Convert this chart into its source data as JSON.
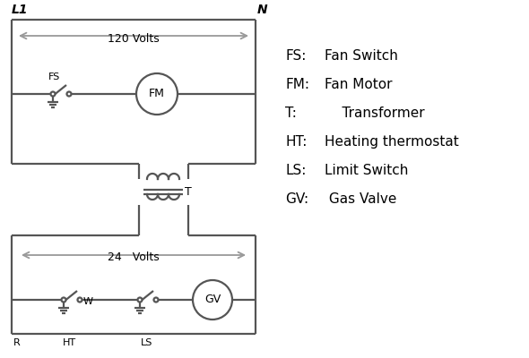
{
  "line_color": "#555555",
  "text_color": "#000000",
  "bg_color": "#ffffff",
  "line_width": 1.6,
  "legend": [
    [
      "FS:",
      "Fan Switch"
    ],
    [
      "FM:",
      "Fan Motor"
    ],
    [
      "T:",
      "    Transformer"
    ],
    [
      "HT:",
      "Heating thermostat"
    ],
    [
      "LS:",
      "Limit Switch"
    ],
    [
      "GV:",
      " Gas Valve"
    ]
  ],
  "labels": {
    "L1": "L1",
    "N": "N",
    "120V": "120 Volts",
    "24V": "24   Volts",
    "FS": "FS",
    "FM": "FM",
    "T": "T",
    "R": "R",
    "W": "W",
    "HT": "HT",
    "LS": "LS",
    "GV": "GV"
  },
  "arrow_color": "#999999",
  "font_size_label": 9,
  "font_size_small": 8,
  "font_size_legend": 11
}
